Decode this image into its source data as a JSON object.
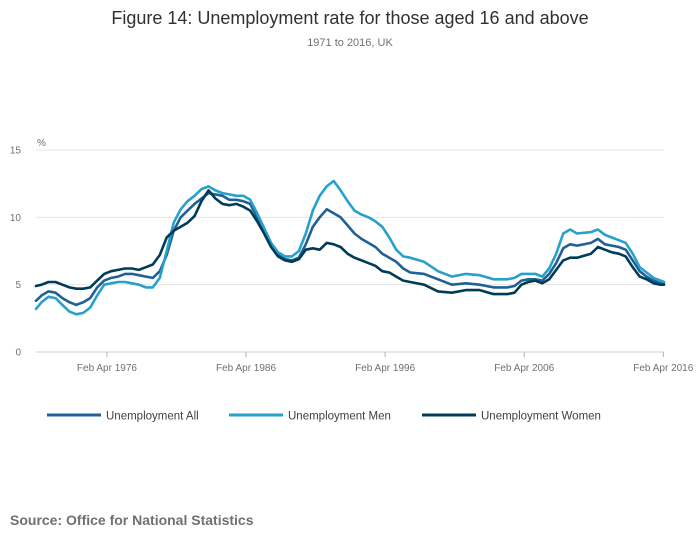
{
  "chart_data": {
    "type": "line",
    "title": "Figure 14: Unemployment rate for those aged 16 and above",
    "subtitle": "1971 to 2016, UK",
    "ylabel": "%",
    "xlabel": "",
    "xlim": [
      1971.1,
      2016.25
    ],
    "ylim": [
      0,
      15
    ],
    "yticks": [
      0,
      5,
      10,
      15
    ],
    "xticks": [
      {
        "label": "Feb Apr 1976",
        "value": 1976.2
      },
      {
        "label": "Feb Apr 1986",
        "value": 1986.2
      },
      {
        "label": "Feb Apr 1996",
        "value": 1996.2
      },
      {
        "label": "Feb Apr 2006",
        "value": 2006.2
      },
      {
        "label": "Feb Apr 2016",
        "value": 2016.2
      }
    ],
    "grid": "horizontal",
    "legend_position": "bottom",
    "series": [
      {
        "name": "Unemployment All",
        "color": "#206095",
        "x": [
          1971.1,
          1971.5,
          1972.0,
          1972.5,
          1973.0,
          1973.5,
          1974.0,
          1974.5,
          1975.0,
          1975.5,
          1976.0,
          1976.5,
          1977.0,
          1977.5,
          1978.0,
          1978.5,
          1979.0,
          1979.5,
          1980.0,
          1980.5,
          1981.0,
          1981.5,
          1982.0,
          1982.5,
          1983.0,
          1983.5,
          1984.0,
          1984.5,
          1985.0,
          1985.5,
          1986.0,
          1986.5,
          1987.0,
          1987.5,
          1988.0,
          1988.5,
          1989.0,
          1989.5,
          1990.0,
          1990.5,
          1991.0,
          1991.5,
          1992.0,
          1992.5,
          1993.0,
          1993.5,
          1994.0,
          1994.5,
          1995.0,
          1995.5,
          1996.0,
          1996.5,
          1997.0,
          1997.5,
          1998.0,
          1999.0,
          2000.0,
          2001.0,
          2002.0,
          2003.0,
          2004.0,
          2005.0,
          2005.5,
          2006.0,
          2006.5,
          2007.0,
          2007.5,
          2008.0,
          2008.5,
          2009.0,
          2009.5,
          2010.0,
          2011.0,
          2011.5,
          2012.0,
          2012.5,
          2013.0,
          2013.5,
          2014.0,
          2014.5,
          2015.0,
          2015.5,
          2016.0,
          2016.25
        ],
        "values": [
          3.8,
          4.2,
          4.5,
          4.4,
          4.0,
          3.7,
          3.5,
          3.7,
          4.0,
          4.8,
          5.3,
          5.5,
          5.6,
          5.8,
          5.8,
          5.7,
          5.6,
          5.5,
          6.0,
          7.2,
          9.0,
          10.0,
          10.5,
          11.0,
          11.4,
          11.8,
          11.7,
          11.6,
          11.3,
          11.3,
          11.2,
          11.0,
          10.0,
          9.0,
          8.0,
          7.2,
          6.9,
          6.8,
          7.0,
          8.0,
          9.3,
          10.0,
          10.6,
          10.3,
          10.0,
          9.4,
          8.8,
          8.4,
          8.1,
          7.8,
          7.3,
          7.0,
          6.7,
          6.2,
          5.9,
          5.8,
          5.4,
          5.0,
          5.1,
          5.0,
          4.8,
          4.8,
          4.9,
          5.3,
          5.4,
          5.4,
          5.3,
          5.8,
          6.6,
          7.7,
          8.0,
          7.9,
          8.1,
          8.4,
          8.0,
          7.9,
          7.8,
          7.6,
          6.8,
          6.0,
          5.6,
          5.3,
          5.1,
          5.1
        ]
      },
      {
        "name": "Unemployment Men",
        "color": "#27a0cc",
        "x": [
          1971.1,
          1971.5,
          1972.0,
          1972.5,
          1973.0,
          1973.5,
          1974.0,
          1974.5,
          1975.0,
          1975.5,
          1976.0,
          1976.5,
          1977.0,
          1977.5,
          1978.0,
          1978.5,
          1979.0,
          1979.5,
          1980.0,
          1980.5,
          1981.0,
          1981.5,
          1982.0,
          1982.5,
          1983.0,
          1983.5,
          1984.0,
          1984.5,
          1985.0,
          1985.5,
          1986.0,
          1986.5,
          1987.0,
          1987.5,
          1988.0,
          1988.5,
          1989.0,
          1989.5,
          1990.0,
          1990.5,
          1991.0,
          1991.5,
          1992.0,
          1992.5,
          1993.0,
          1993.5,
          1994.0,
          1994.5,
          1995.0,
          1995.5,
          1996.0,
          1996.5,
          1997.0,
          1997.5,
          1998.0,
          1999.0,
          2000.0,
          2001.0,
          2002.0,
          2003.0,
          2004.0,
          2005.0,
          2005.5,
          2006.0,
          2006.5,
          2007.0,
          2007.5,
          2008.0,
          2008.5,
          2009.0,
          2009.5,
          2010.0,
          2011.0,
          2011.5,
          2012.0,
          2012.5,
          2013.0,
          2013.5,
          2014.0,
          2014.5,
          2015.0,
          2015.5,
          2016.0,
          2016.25
        ],
        "values": [
          3.2,
          3.7,
          4.1,
          4.0,
          3.5,
          3.0,
          2.8,
          2.9,
          3.3,
          4.2,
          5.0,
          5.1,
          5.2,
          5.2,
          5.1,
          5.0,
          4.8,
          4.8,
          5.5,
          7.5,
          9.6,
          10.6,
          11.2,
          11.6,
          12.1,
          12.3,
          12.0,
          11.8,
          11.7,
          11.6,
          11.6,
          11.3,
          10.3,
          9.2,
          8.1,
          7.4,
          7.1,
          7.1,
          7.5,
          8.8,
          10.5,
          11.6,
          12.3,
          12.7,
          12.0,
          11.2,
          10.5,
          10.2,
          10.0,
          9.7,
          9.3,
          8.5,
          7.6,
          7.1,
          7.0,
          6.7,
          6.0,
          5.6,
          5.8,
          5.7,
          5.4,
          5.4,
          5.5,
          5.8,
          5.8,
          5.8,
          5.6,
          6.2,
          7.3,
          8.8,
          9.1,
          8.8,
          8.9,
          9.1,
          8.7,
          8.5,
          8.3,
          8.1,
          7.3,
          6.3,
          5.9,
          5.5,
          5.3,
          5.2
        ]
      },
      {
        "name": "Unemployment Women",
        "color": "#003c57",
        "x": [
          1971.1,
          1971.5,
          1972.0,
          1972.5,
          1973.0,
          1973.5,
          1974.0,
          1974.5,
          1975.0,
          1975.5,
          1976.0,
          1976.5,
          1977.0,
          1977.5,
          1978.0,
          1978.5,
          1979.0,
          1979.5,
          1980.0,
          1980.5,
          1981.0,
          1981.5,
          1982.0,
          1982.5,
          1983.0,
          1983.5,
          1984.0,
          1984.5,
          1985.0,
          1985.5,
          1986.0,
          1986.5,
          1987.0,
          1987.5,
          1988.0,
          1988.5,
          1989.0,
          1989.5,
          1990.0,
          1990.5,
          1991.0,
          1991.5,
          1992.0,
          1992.5,
          1993.0,
          1993.5,
          1994.0,
          1994.5,
          1995.0,
          1995.5,
          1996.0,
          1996.5,
          1997.0,
          1997.5,
          1998.0,
          1999.0,
          2000.0,
          2001.0,
          2002.0,
          2003.0,
          2004.0,
          2005.0,
          2005.5,
          2006.0,
          2006.5,
          2007.0,
          2007.5,
          2008.0,
          2008.5,
          2009.0,
          2009.5,
          2010.0,
          2011.0,
          2011.5,
          2012.0,
          2012.5,
          2013.0,
          2013.5,
          2014.0,
          2014.5,
          2015.0,
          2015.5,
          2016.0,
          2016.25
        ],
        "values": [
          4.9,
          5.0,
          5.2,
          5.2,
          5.0,
          4.8,
          4.7,
          4.7,
          4.8,
          5.3,
          5.8,
          6.0,
          6.1,
          6.2,
          6.2,
          6.1,
          6.3,
          6.5,
          7.2,
          8.5,
          9.0,
          9.3,
          9.6,
          10.1,
          11.2,
          12.0,
          11.4,
          11.0,
          10.9,
          11.0,
          10.8,
          10.5,
          9.7,
          8.8,
          7.8,
          7.1,
          6.8,
          6.7,
          6.9,
          7.6,
          7.7,
          7.6,
          8.1,
          8.0,
          7.8,
          7.3,
          7.0,
          6.8,
          6.6,
          6.4,
          6.0,
          5.9,
          5.6,
          5.3,
          5.2,
          5.0,
          4.5,
          4.4,
          4.6,
          4.6,
          4.3,
          4.3,
          4.4,
          5.0,
          5.2,
          5.3,
          5.1,
          5.4,
          6.1,
          6.8,
          7.0,
          7.0,
          7.3,
          7.8,
          7.6,
          7.4,
          7.3,
          7.1,
          6.3,
          5.6,
          5.4,
          5.1,
          5.0,
          5.0
        ]
      }
    ]
  },
  "source": "Source: Office for National Statistics"
}
